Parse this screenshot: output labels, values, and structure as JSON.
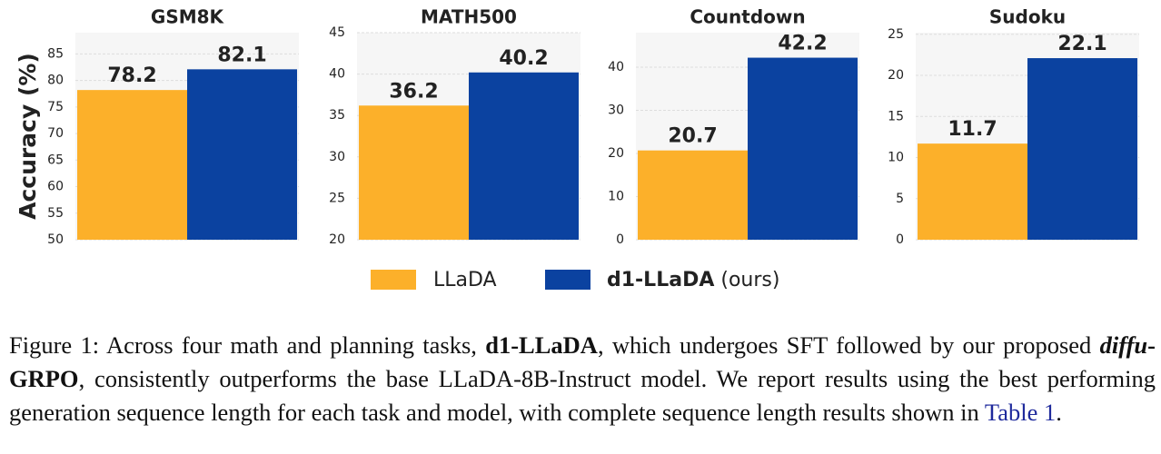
{
  "chart_data": [
    {
      "type": "bar",
      "title": "GSM8K",
      "y_label": "Accuracy (%)",
      "series": [
        {
          "name": "LLaDA",
          "color": "#fcb02a",
          "values": [
            78.2
          ]
        },
        {
          "name": "d1-LLaDA",
          "color": "#0b42a0",
          "values": [
            82.1
          ]
        }
      ],
      "ylim": [
        50,
        89
      ],
      "yticks": [
        50,
        55,
        60,
        65,
        70,
        75,
        80,
        85
      ],
      "grid": true
    },
    {
      "type": "bar",
      "title": "MATH500",
      "series": [
        {
          "color": "#fcb02a",
          "values": [
            36.2
          ]
        },
        {
          "color": "#0b42a0",
          "values": [
            40.2
          ]
        }
      ],
      "ylim": [
        20,
        45
      ],
      "yticks": [
        20,
        25,
        30,
        35,
        40,
        45
      ],
      "grid": true
    },
    {
      "type": "bar",
      "title": "Countdown",
      "series": [
        {
          "color": "#fcb02a",
          "values": [
            20.7
          ]
        },
        {
          "color": "#0b42a0",
          "values": [
            42.2
          ]
        }
      ],
      "ylim": [
        0,
        48
      ],
      "yticks": [
        0,
        10,
        20,
        30,
        40
      ],
      "grid": true
    },
    {
      "type": "bar",
      "title": "Sudoku",
      "series": [
        {
          "color": "#fcb02a",
          "values": [
            11.7
          ]
        },
        {
          "color": "#0b42a0",
          "values": [
            22.1
          ]
        }
      ],
      "ylim": [
        0,
        25.2
      ],
      "yticks": [
        0,
        5,
        10,
        15,
        20,
        25
      ],
      "grid": true
    }
  ],
  "legend_suffix": "(ours)",
  "caption": {
    "label": "Figure 1:",
    "runs": [
      {
        "text": "Across four math and planning tasks, ",
        "style": "normal"
      },
      {
        "text": "d1-LLaDA",
        "style": "bold"
      },
      {
        "text": ", which undergoes SFT followed by our proposed ",
        "style": "normal"
      },
      {
        "text": "diffu",
        "style": "bold-italic"
      },
      {
        "text": "-GRPO",
        "style": "bold"
      },
      {
        "text": ", consistently outperforms the base LLaDA-8B-Instruct model. We report results using the best performing generation sequence length for each task and model, with complete sequence length results shown in ",
        "style": "normal"
      },
      {
        "text": "Table 1",
        "style": "link"
      },
      {
        "text": ".",
        "style": "normal"
      }
    ]
  }
}
